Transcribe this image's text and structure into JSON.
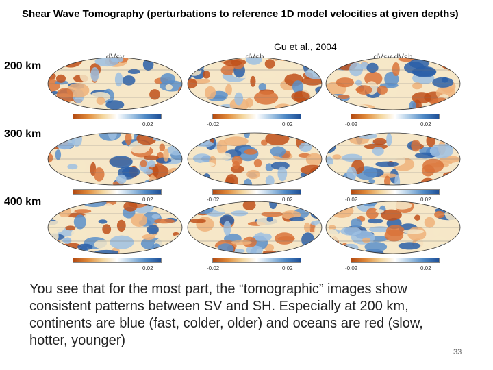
{
  "slide": {
    "title": "Shear Wave Tomography (perturbations to reference 1D model velocities at given depths)",
    "citation": "Gu et al., 2004",
    "page_number": "33",
    "body": "You see that for the most part, the “tomographic” images show consistent patterns between SV and SH.  Especially at 200 km, continents are blue (fast, colder, older) and oceans are red (slow, hotter, younger)"
  },
  "columns": [
    "dVsv",
    "dVsh",
    "dVsv dVsh"
  ],
  "rows": [
    {
      "depth": "200 km",
      "colorbar_min": [
        "",
        "-0.02",
        "-0.02"
      ],
      "colorbar_max": [
        "0.02",
        "0.02",
        "0.02"
      ]
    },
    {
      "depth": "300 km",
      "colorbar_min": [
        "",
        "-0.02",
        "-0.02"
      ],
      "colorbar_max": [
        "0.02",
        "0.02",
        "0.02"
      ]
    },
    {
      "depth": "400 km",
      "colorbar_min": [
        "",
        "-0.02",
        "-0.02"
      ],
      "colorbar_max": [
        "0.02",
        "0.02",
        "0.02"
      ]
    }
  ],
  "colors": {
    "fast": "#2a5fa8",
    "slow": "#c0501a",
    "neutral": "#f6e7c8"
  }
}
